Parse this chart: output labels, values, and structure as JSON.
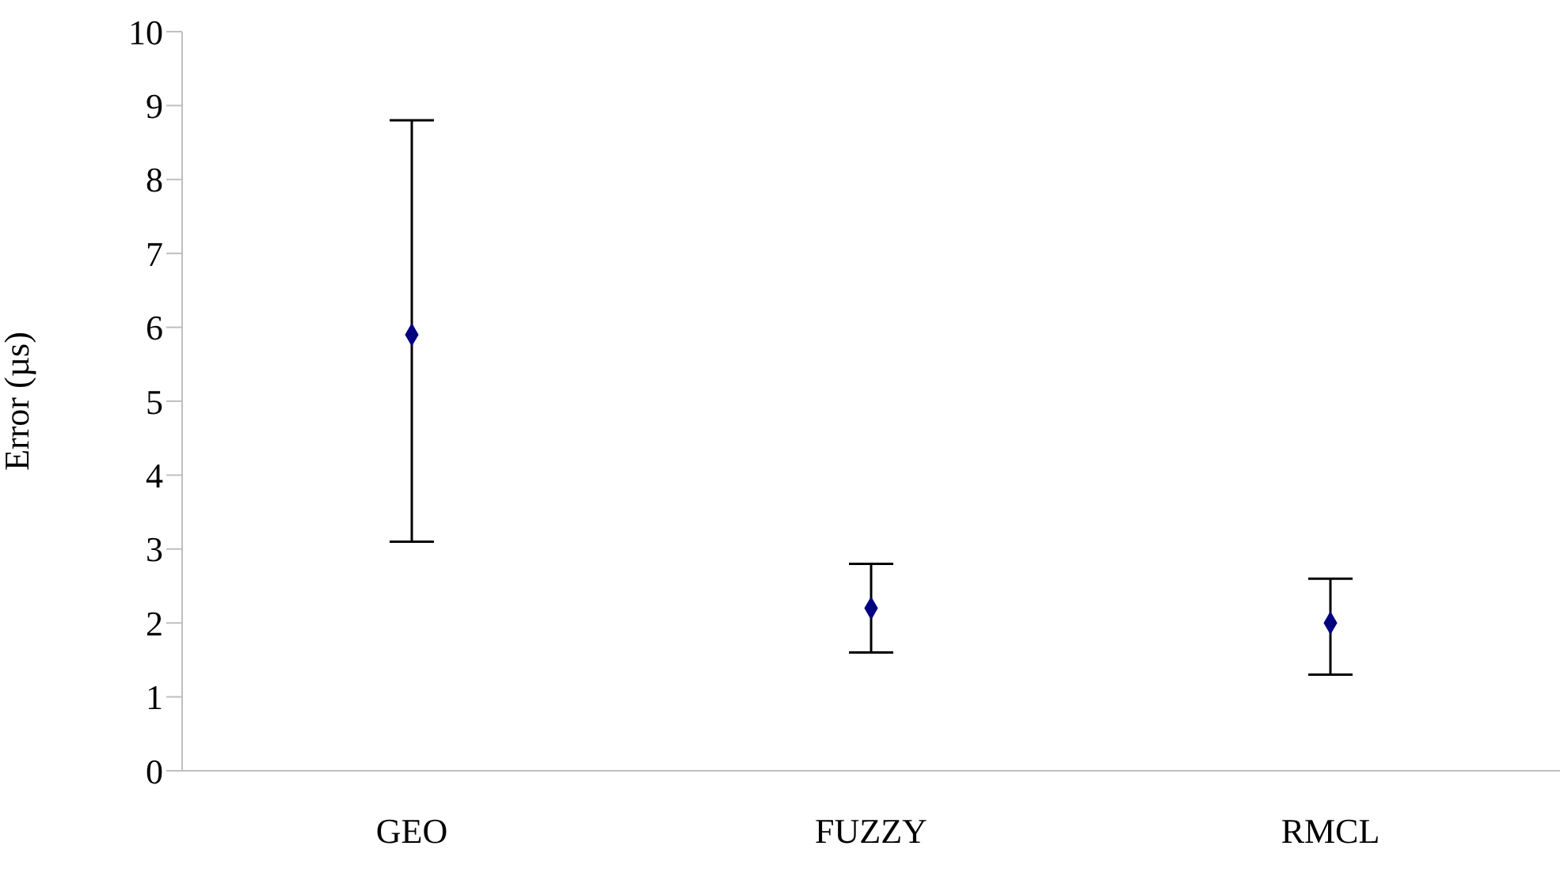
{
  "chart_data": {
    "type": "scatter",
    "ylabel": "Error (µs)",
    "categories": [
      "GEO",
      "FUZZY",
      "RMCL"
    ],
    "series": [
      {
        "color": "#000080",
        "values": [
          5.9,
          2.2,
          2.0
        ],
        "errors": [
          [
            3.1,
            8.8
          ],
          [
            1.6,
            2.8
          ],
          [
            1.3,
            2.6
          ]
        ]
      }
    ],
    "ylim": [
      0,
      10
    ],
    "yticks": [
      0,
      1,
      2,
      3,
      4,
      5,
      6,
      7,
      8,
      9,
      10
    ],
    "marker": "diamond",
    "grid": false,
    "legend": false
  }
}
